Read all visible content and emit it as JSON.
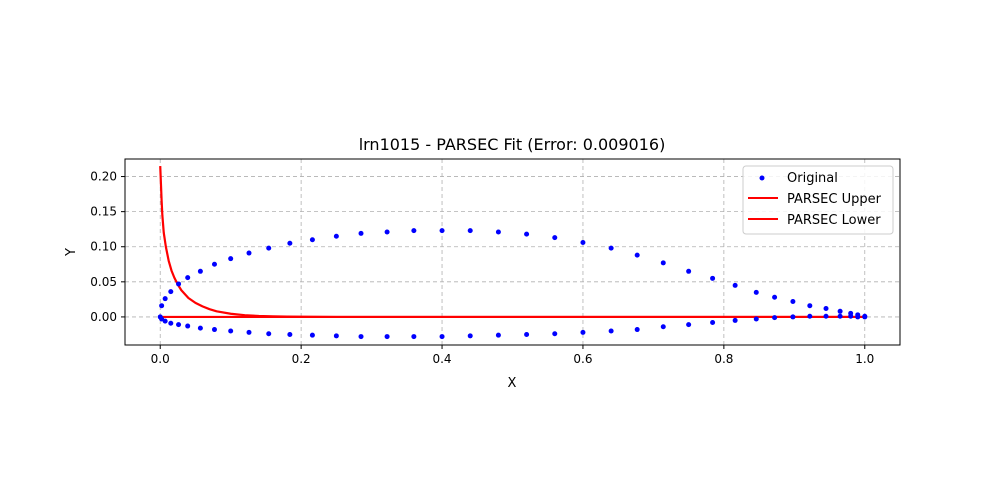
{
  "chart_data": {
    "type": "line",
    "title": "lrn1015 - PARSEC Fit (Error: 0.009016)",
    "xlabel": "X",
    "ylabel": "Y",
    "xlim": [
      -0.05,
      1.05
    ],
    "ylim": [
      -0.04,
      0.225
    ],
    "xticks": [
      0.0,
      0.2,
      0.4,
      0.6,
      0.8,
      1.0
    ],
    "xtick_labels": [
      "0.0",
      "0.2",
      "0.4",
      "0.6",
      "0.8",
      "1.0"
    ],
    "yticks": [
      0.0,
      0.05,
      0.1,
      0.15,
      0.2
    ],
    "ytick_labels": [
      "0.00",
      "0.05",
      "0.10",
      "0.15",
      "0.20"
    ],
    "grid": true,
    "legend_position": "top-right",
    "series": [
      {
        "name": "Original",
        "kind": "scatter",
        "color": "#0000ff",
        "x": [
          1.0,
          0.99,
          0.98,
          0.965,
          0.945,
          0.922,
          0.898,
          0.872,
          0.846,
          0.816,
          0.784,
          0.75,
          0.714,
          0.677,
          0.64,
          0.6,
          0.56,
          0.52,
          0.48,
          0.44,
          0.4,
          0.36,
          0.322,
          0.285,
          0.25,
          0.216,
          0.184,
          0.154,
          0.126,
          0.1,
          0.077,
          0.057,
          0.039,
          0.026,
          0.015,
          0.007,
          0.002,
          0.0,
          0.002,
          0.007,
          0.015,
          0.026,
          0.039,
          0.057,
          0.077,
          0.1,
          0.126,
          0.154,
          0.184,
          0.216,
          0.25,
          0.285,
          0.322,
          0.36,
          0.4,
          0.44,
          0.48,
          0.52,
          0.56,
          0.6,
          0.64,
          0.677,
          0.714,
          0.75,
          0.784,
          0.816,
          0.846,
          0.872,
          0.898,
          0.922,
          0.945,
          0.965,
          0.98,
          0.99,
          1.0
        ],
        "y": [
          0.001,
          0.003,
          0.005,
          0.008,
          0.012,
          0.016,
          0.022,
          0.028,
          0.035,
          0.045,
          0.055,
          0.065,
          0.077,
          0.088,
          0.098,
          0.106,
          0.113,
          0.118,
          0.121,
          0.123,
          0.123,
          0.123,
          0.121,
          0.119,
          0.115,
          0.11,
          0.105,
          0.098,
          0.091,
          0.083,
          0.075,
          0.065,
          0.056,
          0.047,
          0.036,
          0.026,
          0.016,
          0.0,
          -0.003,
          -0.006,
          -0.009,
          -0.011,
          -0.013,
          -0.016,
          -0.018,
          -0.02,
          -0.022,
          -0.024,
          -0.025,
          -0.026,
          -0.027,
          -0.028,
          -0.028,
          -0.028,
          -0.028,
          -0.027,
          -0.026,
          -0.025,
          -0.024,
          -0.022,
          -0.02,
          -0.018,
          -0.014,
          -0.011,
          -0.008,
          -0.005,
          -0.003,
          -0.001,
          0.0,
          0.001,
          0.001,
          0.001,
          0.001,
          0.0,
          0.0
        ]
      },
      {
        "name": "PARSEC Upper",
        "kind": "line",
        "color": "#ff0000",
        "x": [
          0.0,
          0.001,
          0.002,
          0.003,
          0.005,
          0.008,
          0.012,
          0.016,
          0.02,
          0.025,
          0.03,
          0.04,
          0.05,
          0.06,
          0.07,
          0.08,
          0.1,
          0.12,
          0.14,
          0.16,
          0.18,
          0.2,
          0.25,
          0.3,
          0.4,
          0.5,
          0.6,
          0.7,
          0.8,
          0.9,
          1.0
        ],
        "y": [
          0.215,
          0.19,
          0.165,
          0.145,
          0.12,
          0.1,
          0.08,
          0.066,
          0.056,
          0.046,
          0.038,
          0.027,
          0.02,
          0.015,
          0.011,
          0.008,
          0.0045,
          0.0025,
          0.0014,
          0.0008,
          0.0004,
          0.0002,
          0.0,
          0.0,
          0.0,
          0.0,
          0.0,
          0.0,
          0.0,
          0.0,
          0.0
        ]
      },
      {
        "name": "PARSEC Lower",
        "kind": "line",
        "color": "#ff0000",
        "x": [
          0.0,
          0.1,
          0.2,
          0.3,
          0.4,
          0.5,
          0.6,
          0.7,
          0.8,
          0.9,
          1.0
        ],
        "y": [
          0.0,
          0.0,
          0.0,
          0.0,
          0.0,
          0.0,
          0.0,
          0.0,
          0.0,
          0.0,
          0.0
        ]
      }
    ]
  }
}
